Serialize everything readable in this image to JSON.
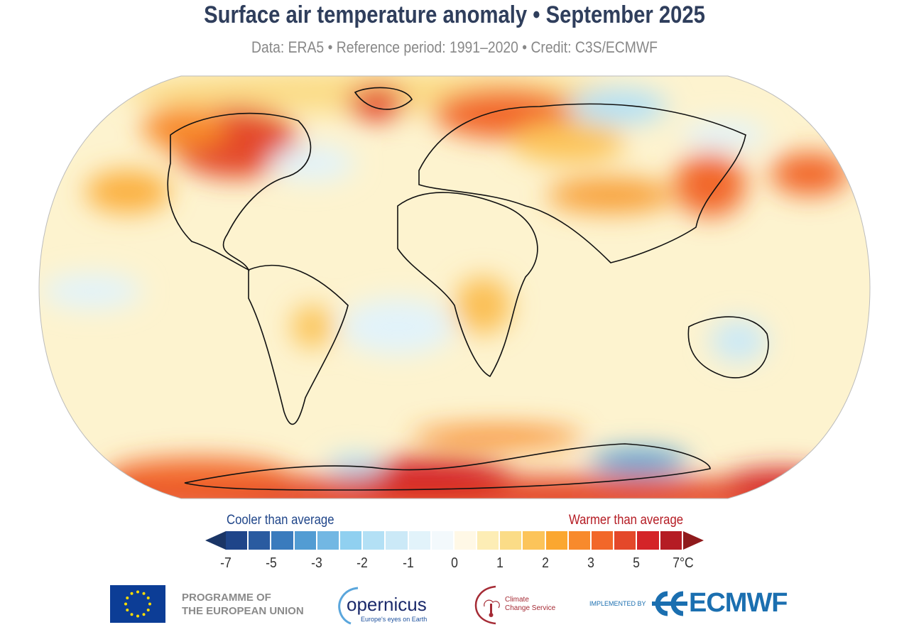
{
  "header": {
    "title": "Surface air temperature anomaly • September 2025",
    "subtitle": "Data: ERA5 • Reference period: 1991–2020 • Credit: C3S/ECMWF"
  },
  "map": {
    "projection": "Robinson",
    "variable": "Surface air temperature anomaly",
    "baseline_color": "#fdf3cf"
  },
  "legend": {
    "cooler_label": "Cooler than average",
    "warmer_label": "Warmer than average",
    "colors": [
      "#1f4589",
      "#2a5ba0",
      "#3a7bbd",
      "#529cd3",
      "#72b7e3",
      "#90d0f0",
      "#b3e0f5",
      "#cbe9f7",
      "#e2f3fa",
      "#f3f9fc",
      "#fff8e6",
      "#fdedb5",
      "#fbdc87",
      "#fcc45a",
      "#fba730",
      "#f88a2c",
      "#f26729",
      "#e4482a",
      "#d42428",
      "#b51c24"
    ],
    "ticks": [
      "-7",
      "-5",
      "-3",
      "-2",
      "-1",
      "0",
      "1",
      "2",
      "3",
      "5",
      "7°C"
    ]
  },
  "footer": {
    "eu_line1": "PROGRAMME OF",
    "eu_line2": "THE EUROPEAN UNION",
    "copernicus": "opernicus",
    "copernicus_tagline": "Europe's eyes on Earth",
    "c3s_line1": "Climate",
    "c3s_line2": "Change Service",
    "implemented_by": "IMPLEMENTED BY",
    "ecmwf": "ECMWF"
  }
}
